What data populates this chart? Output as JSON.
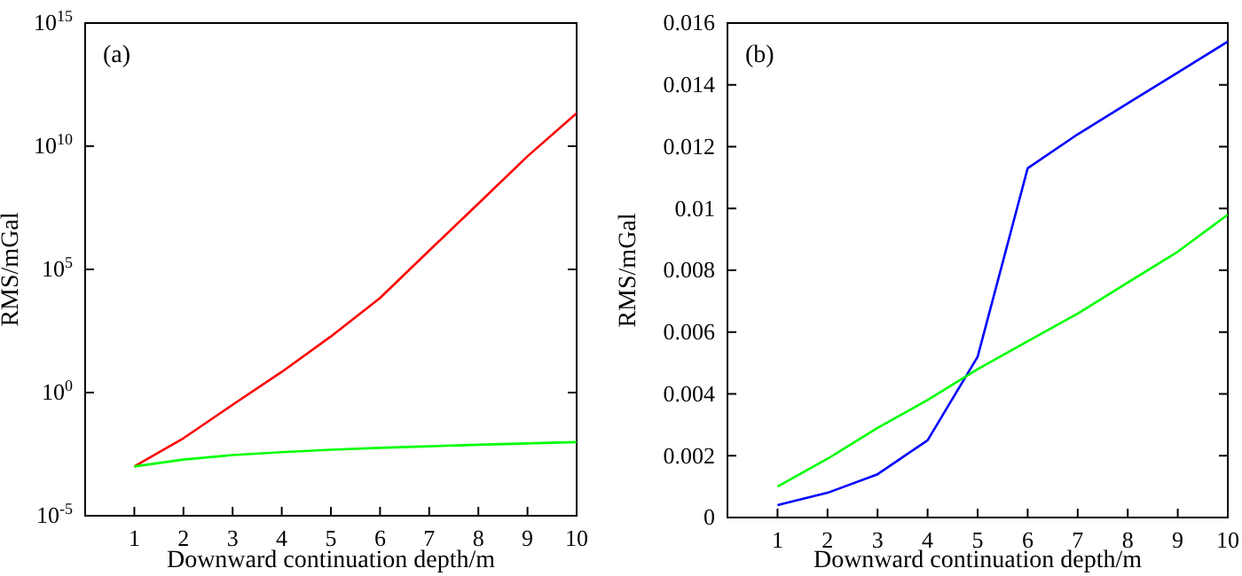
{
  "chart_data": [
    {
      "type": "line",
      "xlabel": "Downward continuation depth/m",
      "ylabel": "RMS/mGal",
      "annotations": [
        "(a)"
      ],
      "log": "y",
      "x": [
        1,
        2,
        3,
        4,
        5,
        6,
        7,
        8,
        9,
        10
      ],
      "series": [
        {
          "color": "#ff0000",
          "values": [
            0.001,
            0.014,
            0.32,
            6.9,
            190,
            6900,
            580000,
            47000000,
            3900000000,
            220000000000
          ]
        },
        {
          "color": "#00ff00",
          "values": [
            0.001,
            0.0019,
            0.0029,
            0.0038,
            0.0048,
            0.0057,
            0.0066,
            0.0076,
            0.0086,
            0.0098
          ]
        }
      ],
      "xlim": [
        0,
        10
      ],
      "xticks": [
        1,
        2,
        3,
        4,
        5,
        6,
        7,
        8,
        9,
        10
      ],
      "ylim": [
        1e-05,
        1000000000000000.0
      ],
      "yticks": [
        {
          "value": 1e-05,
          "label": "10$^{-5}$"
        },
        {
          "value": 1,
          "label": "10$^{0}$"
        },
        {
          "value": 100000,
          "label": "10$^{5}$"
        },
        {
          "value": 10000000000.0,
          "label": "10$^{10}$"
        },
        {
          "value": 1000000000000000.0,
          "label": "10$^{15}$"
        }
      ],
      "grid": false
    },
    {
      "type": "line",
      "xlabel": "Downward continuation depth/m",
      "ylabel": "RMS/mGal",
      "annotations": [
        "(b)"
      ],
      "x": [
        1,
        2,
        3,
        4,
        5,
        6,
        7,
        8,
        9,
        10
      ],
      "series": [
        {
          "color": "#0000ff",
          "values": [
            0.0004,
            0.0008,
            0.0014,
            0.0025,
            0.0052,
            0.0113,
            0.0124,
            0.0134,
            0.0144,
            0.0154
          ]
        },
        {
          "color": "#00ff00",
          "values": [
            0.001,
            0.0019,
            0.0029,
            0.0038,
            0.0048,
            0.0057,
            0.0066,
            0.0076,
            0.0086,
            0.0098
          ]
        }
      ],
      "xlim": [
        0,
        10
      ],
      "xticks": [
        1,
        2,
        3,
        4,
        5,
        6,
        7,
        8,
        9,
        10
      ],
      "ylim": [
        0,
        0.016
      ],
      "yticks": [
        0,
        0.002,
        0.004,
        0.006,
        0.008,
        0.01,
        0.012,
        0.014,
        0.016
      ],
      "grid": false
    }
  ]
}
